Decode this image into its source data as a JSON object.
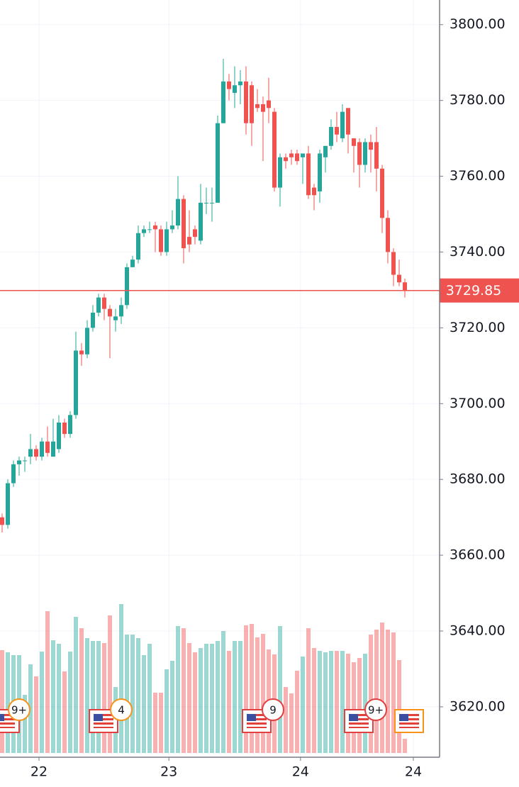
{
  "chart_data": {
    "type": "candlestick",
    "candles": {
      "open": [
        3670,
        3668,
        3679,
        3684,
        3685,
        3686,
        3688,
        3686,
        3690,
        3686,
        3688,
        3695,
        3692,
        3697,
        3714,
        3713,
        3720,
        3724,
        3728,
        3725,
        3722,
        3723,
        3726,
        3736,
        3738,
        3745,
        3746,
        3747,
        3746,
        3740,
        3746,
        3747,
        3754,
        3744,
        3746,
        3743,
        3753,
        3753,
        3753,
        3774,
        3785,
        3782,
        3784,
        3785,
        3784,
        3779,
        3779,
        3780,
        3777,
        3757,
        3765,
        3766,
        3766,
        3765,
        3766,
        3757,
        3756,
        3765,
        3768,
        3773,
        3770,
        3778,
        3770,
        3769,
        3763,
        3769,
        3769,
        3762,
        3749,
        3740,
        3734,
        3732
      ],
      "high": [
        3671,
        3680,
        3685,
        3686,
        3686,
        3692,
        3689,
        3691,
        3694,
        3696,
        3697,
        3696,
        3698,
        3719,
        3716,
        3722,
        3726,
        3729,
        3729,
        3726,
        3725,
        3728,
        3737,
        3739,
        3747,
        3747,
        3748,
        3748,
        3747,
        3748,
        3751,
        3760,
        3755,
        3751,
        3747,
        3758,
        3757,
        3757,
        3776,
        3791,
        3787,
        3789,
        3788,
        3789,
        3785,
        3783,
        3781,
        3786,
        3778,
        3766,
        3766,
        3767,
        3767,
        3766,
        3768,
        3758,
        3767,
        3768,
        3775,
        3777,
        3779,
        3778,
        3770,
        3770,
        3770,
        3771,
        3773,
        3763,
        3751,
        3741,
        3738,
        3733
      ],
      "low": [
        3666,
        3667,
        3678,
        3681,
        3682,
        3684,
        3685,
        3685,
        3686,
        3686,
        3687,
        3691,
        3691,
        3696,
        3710,
        3712,
        3719,
        3723,
        3722,
        3712,
        3719,
        3721,
        3725,
        3736,
        3737,
        3744,
        3745,
        3740,
        3739,
        3739,
        3745,
        3746,
        3737,
        3740,
        3742,
        3742,
        3750,
        3748,
        3753,
        3774,
        3780,
        3778,
        3779,
        3771,
        3768,
        3777,
        3764,
        3774,
        3756,
        3752,
        3762,
        3763,
        3763,
        3758,
        3754,
        3751,
        3753,
        3761,
        3767,
        3769,
        3769,
        3766,
        3761,
        3757,
        3761,
        3761,
        3756,
        3745,
        3737,
        3731,
        3731,
        3728
      ],
      "close": [
        3668,
        3679,
        3684,
        3685,
        3685,
        3688,
        3686,
        3690,
        3687,
        3690,
        3695,
        3692,
        3697,
        3714,
        3713,
        3720,
        3724,
        3728,
        3725,
        3723,
        3723,
        3726,
        3736,
        3738,
        3745,
        3746,
        3746,
        3746,
        3740,
        3746,
        3747,
        3754,
        3741,
        3742,
        3744,
        3753,
        3753,
        3753,
        3774,
        3785,
        3783,
        3784,
        3785,
        3774,
        3774,
        3778,
        3777,
        3778,
        3757,
        3765,
        3764,
        3765,
        3764,
        3766,
        3755,
        3755,
        3766,
        3768,
        3773,
        3771,
        3777,
        3771,
        3768,
        3763,
        3769,
        3767,
        3762,
        3749,
        3740,
        3734,
        3732,
        3729.85
      ]
    },
    "volume": [
      145,
      142,
      138,
      138,
      82,
      125,
      108,
      143,
      200,
      159,
      154,
      115,
      143,
      192,
      176,
      162,
      158,
      158,
      155,
      194,
      93,
      210,
      167,
      167,
      162,
      138,
      154,
      85,
      85,
      118,
      130,
      179,
      176,
      155,
      142,
      148,
      154,
      154,
      158,
      172,
      144,
      158,
      158,
      180,
      182,
      163,
      168,
      146,
      139,
      179,
      93,
      84,
      116,
      136,
      176,
      148,
      144,
      142,
      144,
      144,
      144,
      140,
      128,
      134,
      140,
      167,
      174,
      184,
      174,
      170,
      131,
      20
    ],
    "up_color": "#26a69a",
    "down_color": "#ef5350",
    "ylim": [
      3606.7,
      3806.5
    ],
    "yticks": [
      {
        "value": 3620,
        "label": "3620.00"
      },
      {
        "value": 3640,
        "label": "3640.00"
      },
      {
        "value": 3660,
        "label": "3660.00"
      },
      {
        "value": 3680,
        "label": "3680.00"
      },
      {
        "value": 3700,
        "label": "3700.00"
      },
      {
        "value": 3720,
        "label": "3720.00"
      },
      {
        "value": 3740,
        "label": "3740.00"
      },
      {
        "value": 3760,
        "label": "3760.00"
      },
      {
        "value": 3780,
        "label": "3780.00"
      },
      {
        "value": 3800,
        "label": "3800.00"
      }
    ],
    "xlim": [
      -0.375,
      77.125
    ],
    "xticks": [
      {
        "value": 6.5,
        "label": "22"
      },
      {
        "value": 29.4,
        "label": "23"
      },
      {
        "value": 52.6,
        "label": "24"
      },
      {
        "value": 72.5,
        "label": "24"
      }
    ],
    "grid": true,
    "events": [
      {
        "badge": "9+"
      },
      {
        "badge": "4"
      },
      {
        "badge": "9"
      },
      {
        "badge": "9+"
      },
      {}
    ]
  }
}
